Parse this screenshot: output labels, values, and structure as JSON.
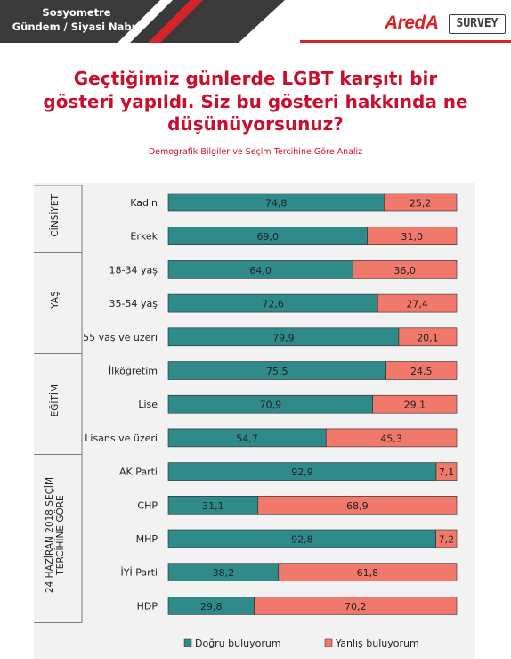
{
  "header": {
    "line1": "Sosyometre",
    "line2": "Gündem / Siyasi Nabız",
    "color": "#3a3a3a"
  },
  "logo": {
    "brand": "AredA",
    "product": "SURVEY",
    "accent": "#d8232a"
  },
  "question": "Geçtiğimiz günlerde LGBT karşıtı bir gösteri yapıldı. Siz bu gösteri hakkında ne düşünüyorsunuz?",
  "subtitle": "Demografik Bilgiler ve Seçim Tercihine Göre Analiz",
  "chart_data": {
    "type": "bar",
    "orientation": "horizontal",
    "stacked": true,
    "xlim": [
      0,
      100
    ],
    "legend_position": "bottom",
    "colors": {
      "dogru": "#2e8b8a",
      "yanlis": "#f0796b"
    },
    "groups": [
      {
        "label": "CİNSİYET",
        "categories": [
          "Kadın",
          "Erkek"
        ]
      },
      {
        "label": "YAŞ",
        "categories": [
          "18-34 yaş",
          "35-54 yaş",
          "55 yaş ve üzeri"
        ]
      },
      {
        "label": "EĞİTİM",
        "categories": [
          "İlköğretim",
          "Lise",
          "Lisans ve üzeri"
        ]
      },
      {
        "label": [
          "24 HAZİRAN 2018 SEÇİM",
          "TERCİHİNE GÖRE"
        ],
        "categories": [
          "AK Parti",
          "CHP",
          "MHP",
          "İYİ Parti",
          "HDP"
        ]
      }
    ],
    "categories": [
      "Kadın",
      "Erkek",
      "18-34 yaş",
      "35-54 yaş",
      "55 yaş ve üzeri",
      "İlköğretim",
      "Lise",
      "Lisans ve üzeri",
      "AK Parti",
      "CHP",
      "MHP",
      "İYİ Parti",
      "HDP"
    ],
    "series": [
      {
        "name": "Doğru buluyorum",
        "values": [
          74.8,
          69.0,
          64.0,
          72.6,
          79.9,
          75.5,
          70.9,
          54.7,
          92.9,
          31.1,
          92.8,
          38.2,
          29.8
        ],
        "labels": [
          "74,8",
          "69,0",
          "64,0",
          "72,6",
          "79,9",
          "75,5",
          "70,9",
          "54,7",
          "92,9",
          "31,1",
          "92,8",
          "38,2",
          "29,8"
        ]
      },
      {
        "name": "Yanlış buluyorum",
        "values": [
          25.2,
          31.0,
          36.0,
          27.4,
          20.1,
          24.5,
          29.1,
          45.3,
          7.1,
          68.9,
          7.2,
          61.8,
          70.2
        ],
        "labels": [
          "25,2",
          "31,0",
          "36,0",
          "27,4",
          "20,1",
          "24,5",
          "29,1",
          "45,3",
          "7,1",
          "68,9",
          "7,2",
          "61,8",
          "70,2"
        ]
      }
    ]
  }
}
